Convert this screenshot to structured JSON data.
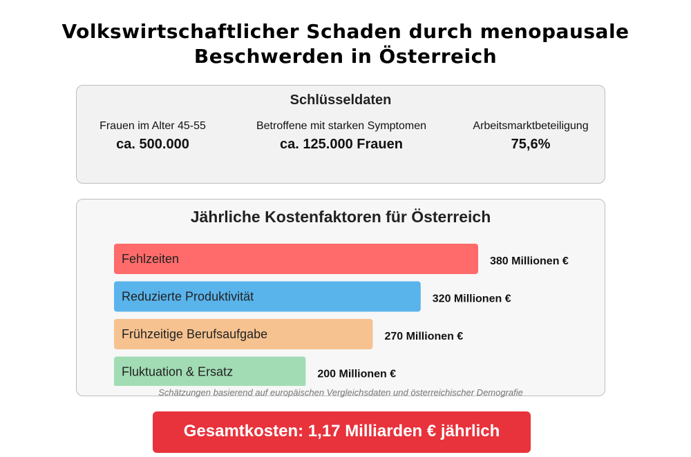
{
  "title": "Volkswirtschaftlicher Schaden durch menopausale Beschwerden in Österreich",
  "key_data": {
    "heading": "Schlüsseldaten",
    "stats": [
      {
        "label": "Frauen im Alter 45-55",
        "value": "ca. 500.000"
      },
      {
        "label": "Betroffene mit starken Symptomen",
        "value": "ca. 125.000 Frauen"
      },
      {
        "label": "Arbeitsmarktbeteiligung",
        "value": "75,6%"
      }
    ]
  },
  "costs": {
    "heading": "Jährliche Kostenfaktoren für Österreich",
    "note": "Schätzungen basierend auf europäischen Vergleichsdaten und österreichischer Demografie"
  },
  "chart_data": {
    "type": "bar",
    "orientation": "horizontal",
    "title": "Jährliche Kostenfaktoren für Österreich",
    "categories": [
      "Fehlzeiten",
      "Reduzierte Produktivität",
      "Frühzeitige Berufsaufgabe",
      "Fluktuation & Ersatz"
    ],
    "values": [
      380,
      320,
      270,
      200
    ],
    "value_labels": [
      "380 Millionen €",
      "320 Millionen €",
      "270 Millionen €",
      "200 Millionen €"
    ],
    "colors": [
      "#ff6b6b",
      "#5ab4ec",
      "#f6c290",
      "#a2dcb4"
    ],
    "unit": "Millionen €",
    "xlim": [
      0,
      380
    ],
    "grid": false
  },
  "total": {
    "label": "Gesamtkosten: 1,17 Milliarden € jährlich",
    "color": "#e8323c"
  }
}
